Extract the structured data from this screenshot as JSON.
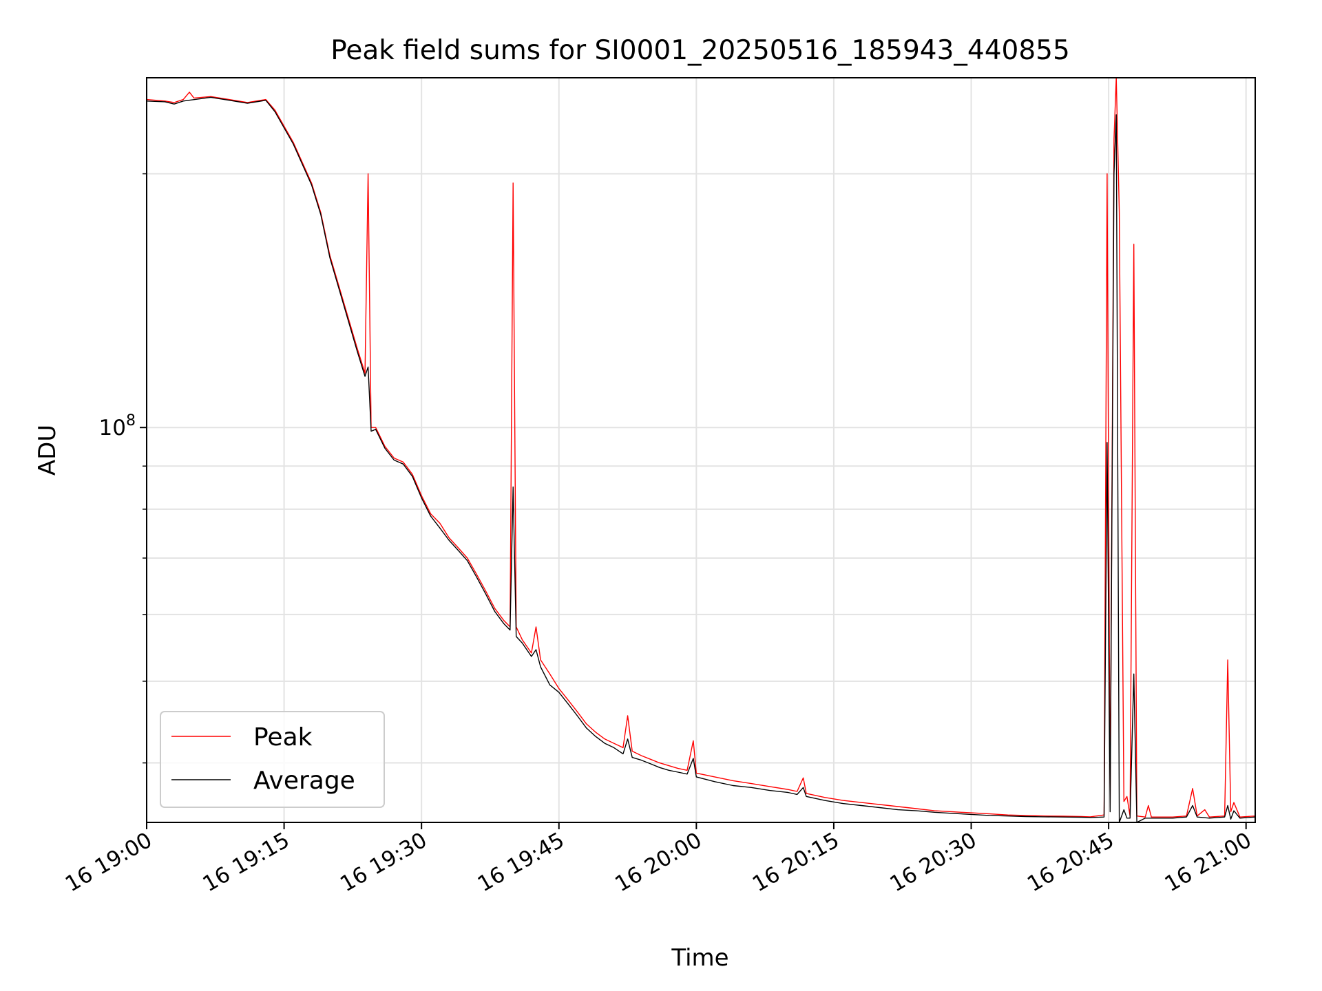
{
  "chart_data": {
    "type": "line",
    "title": "Peak field sums for SI0001_20250516_185943_440855",
    "xlabel": "Time",
    "ylabel": "ADU",
    "x_ticks": [
      {
        "t": "2025-05-16T19:00",
        "label": "16 19:00"
      },
      {
        "t": "2025-05-16T19:15",
        "label": "16 19:15"
      },
      {
        "t": "2025-05-16T19:30",
        "label": "16 19:30"
      },
      {
        "t": "2025-05-16T19:45",
        "label": "16 19:45"
      },
      {
        "t": "2025-05-16T20:00",
        "label": "16 20:00"
      },
      {
        "t": "2025-05-16T20:15",
        "label": "16 20:15"
      },
      {
        "t": "2025-05-16T20:30",
        "label": "16 20:30"
      },
      {
        "t": "2025-05-16T20:45",
        "label": "16 20:45"
      },
      {
        "t": "2025-05-16T21:00",
        "label": "16 21:00"
      }
    ],
    "xlim": [
      "2025-05-16T19:00",
      "2025-05-16T21:01"
    ],
    "y_scale": "log",
    "ylim": [
      34000000,
      260000000
    ],
    "y_major_ticks": [
      {
        "value": 100000000,
        "base": "10",
        "exp": "8"
      }
    ],
    "y_minor_ticks": [
      40000000,
      50000000,
      60000000,
      70000000,
      80000000,
      90000000,
      200000000
    ],
    "grid": true,
    "legend_position": "lower-left",
    "series": [
      {
        "name": "Peak",
        "color": "#ff0000",
        "points": [
          [
            "2025-05-16T19:00",
            245000000
          ],
          [
            "2025-05-16T19:02",
            244000000
          ],
          [
            "2025-05-16T19:03",
            243000000
          ],
          [
            "2025-05-16T19:04",
            245000000
          ],
          [
            "2025-05-16T19:04:40",
            250000000
          ],
          [
            "2025-05-16T19:05:10",
            246000000
          ],
          [
            "2025-05-16T19:07",
            247000000
          ],
          [
            "2025-05-16T19:09",
            245000000
          ],
          [
            "2025-05-16T19:11",
            243000000
          ],
          [
            "2025-05-16T19:13",
            245000000
          ],
          [
            "2025-05-16T19:14",
            238000000
          ],
          [
            "2025-05-16T19:16",
            218000000
          ],
          [
            "2025-05-16T19:18",
            195000000
          ],
          [
            "2025-05-16T19:19",
            180000000
          ],
          [
            "2025-05-16T19:20",
            160000000
          ],
          [
            "2025-05-16T19:21",
            147000000
          ],
          [
            "2025-05-16T19:22",
            135000000
          ],
          [
            "2025-05-16T19:23",
            124000000
          ],
          [
            "2025-05-16T19:23:50",
            116000000
          ],
          [
            "2025-05-16T19:24:10",
            200000000
          ],
          [
            "2025-05-16T19:24:30",
            100000000
          ],
          [
            "2025-05-16T19:25",
            100000000
          ],
          [
            "2025-05-16T19:26",
            95000000
          ],
          [
            "2025-05-16T19:27",
            92000000
          ],
          [
            "2025-05-16T19:28",
            91000000
          ],
          [
            "2025-05-16T19:29",
            88000000
          ],
          [
            "2025-05-16T19:30",
            83000000
          ],
          [
            "2025-05-16T19:31",
            79000000
          ],
          [
            "2025-05-16T19:32",
            77000000
          ],
          [
            "2025-05-16T19:33",
            74000000
          ],
          [
            "2025-05-16T19:34",
            72000000
          ],
          [
            "2025-05-16T19:35",
            70000000
          ],
          [
            "2025-05-16T19:36",
            67000000
          ],
          [
            "2025-05-16T19:37",
            64000000
          ],
          [
            "2025-05-16T19:38",
            61000000
          ],
          [
            "2025-05-16T19:39",
            59000000
          ],
          [
            "2025-05-16T19:39:40",
            58000000
          ],
          [
            "2025-05-16T19:40:00",
            195000000
          ],
          [
            "2025-05-16T19:40:20",
            58000000
          ],
          [
            "2025-05-16T19:41",
            56000000
          ],
          [
            "2025-05-16T19:42",
            54000000
          ],
          [
            "2025-05-16T19:42:30",
            58000000
          ],
          [
            "2025-05-16T19:43",
            53000000
          ],
          [
            "2025-05-16T19:44",
            51000000
          ],
          [
            "2025-05-16T19:45",
            49000000
          ],
          [
            "2025-05-16T19:46",
            47500000
          ],
          [
            "2025-05-16T19:47",
            46000000
          ],
          [
            "2025-05-16T19:48",
            44500000
          ],
          [
            "2025-05-16T19:49",
            43500000
          ],
          [
            "2025-05-16T19:50",
            42700000
          ],
          [
            "2025-05-16T19:51",
            42200000
          ],
          [
            "2025-05-16T19:52",
            41700000
          ],
          [
            "2025-05-16T19:52:30",
            45500000
          ],
          [
            "2025-05-16T19:53",
            41300000
          ],
          [
            "2025-05-16T19:54",
            40800000
          ],
          [
            "2025-05-16T19:55",
            40400000
          ],
          [
            "2025-05-16T19:56",
            40000000
          ],
          [
            "2025-05-16T19:57",
            39700000
          ],
          [
            "2025-05-16T19:58",
            39400000
          ],
          [
            "2025-05-16T19:59",
            39200000
          ],
          [
            "2025-05-16T19:59:40",
            42500000
          ],
          [
            "2025-05-16T20:00",
            38900000
          ],
          [
            "2025-05-16T20:02",
            38500000
          ],
          [
            "2025-05-16T20:04",
            38100000
          ],
          [
            "2025-05-16T20:06",
            37800000
          ],
          [
            "2025-05-16T20:08",
            37500000
          ],
          [
            "2025-05-16T20:10",
            37200000
          ],
          [
            "2025-05-16T20:11",
            37000000
          ],
          [
            "2025-05-16T20:11:40",
            38400000
          ],
          [
            "2025-05-16T20:12",
            36800000
          ],
          [
            "2025-05-16T20:14",
            36400000
          ],
          [
            "2025-05-16T20:16",
            36100000
          ],
          [
            "2025-05-16T20:18",
            35900000
          ],
          [
            "2025-05-16T20:20",
            35700000
          ],
          [
            "2025-05-16T20:22",
            35500000
          ],
          [
            "2025-05-16T20:24",
            35300000
          ],
          [
            "2025-05-16T20:26",
            35100000
          ],
          [
            "2025-05-16T20:28",
            35000000
          ],
          [
            "2025-05-16T20:30",
            34900000
          ],
          [
            "2025-05-16T20:32",
            34800000
          ],
          [
            "2025-05-16T20:34",
            34700000
          ],
          [
            "2025-05-16T20:36",
            34650000
          ],
          [
            "2025-05-16T20:38",
            34600000
          ],
          [
            "2025-05-16T20:40",
            34580000
          ],
          [
            "2025-05-16T20:42",
            34550000
          ],
          [
            "2025-05-16T20:43",
            34520000
          ],
          [
            "2025-05-16T20:44:30",
            34700000
          ],
          [
            "2025-05-16T20:44:50",
            200000000
          ],
          [
            "2025-05-16T20:45:10",
            35500000
          ],
          [
            "2025-05-16T20:45:35",
            220000000
          ],
          [
            "2025-05-16T20:45:50",
            260000000
          ],
          [
            "2025-05-16T20:46:10",
            180000000
          ],
          [
            "2025-05-16T20:46:40",
            36000000
          ],
          [
            "2025-05-16T20:47:00",
            36500000
          ],
          [
            "2025-05-16T20:47:20",
            34600000
          ],
          [
            "2025-05-16T20:47:45",
            165000000
          ],
          [
            "2025-05-16T20:48:05",
            34600000
          ],
          [
            "2025-05-16T20:49",
            34500000
          ],
          [
            "2025-05-16T20:49:20",
            35600000
          ],
          [
            "2025-05-16T20:49:40",
            34500000
          ],
          [
            "2025-05-16T20:52",
            34500000
          ],
          [
            "2025-05-16T20:53:30",
            34600000
          ],
          [
            "2025-05-16T20:54:10",
            37300000
          ],
          [
            "2025-05-16T20:54:40",
            34600000
          ],
          [
            "2025-05-16T20:55:30",
            35200000
          ],
          [
            "2025-05-16T20:56",
            34500000
          ],
          [
            "2025-05-16T20:57:40",
            34600000
          ],
          [
            "2025-05-16T20:58:00",
            53000000
          ],
          [
            "2025-05-16T20:58:20",
            35000000
          ],
          [
            "2025-05-16T20:58:40",
            35900000
          ],
          [
            "2025-05-16T20:59:20",
            34500000
          ],
          [
            "2025-05-16T21:01",
            34600000
          ]
        ]
      },
      {
        "name": "Average",
        "color": "#000000",
        "points": [
          [
            "2025-05-16T19:00",
            244000000
          ],
          [
            "2025-05-16T19:02",
            243500000
          ],
          [
            "2025-05-16T19:03",
            242000000
          ],
          [
            "2025-05-16T19:04",
            244000000
          ],
          [
            "2025-05-16T19:07",
            246500000
          ],
          [
            "2025-05-16T19:09",
            244500000
          ],
          [
            "2025-05-16T19:11",
            242500000
          ],
          [
            "2025-05-16T19:13",
            244500000
          ],
          [
            "2025-05-16T19:14",
            237000000
          ],
          [
            "2025-05-16T19:16",
            217000000
          ],
          [
            "2025-05-16T19:18",
            194000000
          ],
          [
            "2025-05-16T19:19",
            179000000
          ],
          [
            "2025-05-16T19:20",
            159000000
          ],
          [
            "2025-05-16T19:21",
            146000000
          ],
          [
            "2025-05-16T19:22",
            134000000
          ],
          [
            "2025-05-16T19:23",
            123000000
          ],
          [
            "2025-05-16T19:23:50",
            115000000
          ],
          [
            "2025-05-16T19:24:10",
            118000000
          ],
          [
            "2025-05-16T19:24:30",
            99000000
          ],
          [
            "2025-05-16T19:25",
            99500000
          ],
          [
            "2025-05-16T19:26",
            94500000
          ],
          [
            "2025-05-16T19:27",
            91500000
          ],
          [
            "2025-05-16T19:28",
            90500000
          ],
          [
            "2025-05-16T19:29",
            87500000
          ],
          [
            "2025-05-16T19:30",
            82500000
          ],
          [
            "2025-05-16T19:31",
            78500000
          ],
          [
            "2025-05-16T19:32",
            76000000
          ],
          [
            "2025-05-16T19:33",
            73500000
          ],
          [
            "2025-05-16T19:34",
            71500000
          ],
          [
            "2025-05-16T19:35",
            69500000
          ],
          [
            "2025-05-16T19:36",
            66500000
          ],
          [
            "2025-05-16T19:37",
            63500000
          ],
          [
            "2025-05-16T19:38",
            60500000
          ],
          [
            "2025-05-16T19:39",
            58500000
          ],
          [
            "2025-05-16T19:39:40",
            57500000
          ],
          [
            "2025-05-16T19:40:00",
            85000000
          ],
          [
            "2025-05-16T19:40:20",
            56500000
          ],
          [
            "2025-05-16T19:41",
            55500000
          ],
          [
            "2025-05-16T19:42",
            53500000
          ],
          [
            "2025-05-16T19:42:30",
            54500000
          ],
          [
            "2025-05-16T19:43",
            52000000
          ],
          [
            "2025-05-16T19:44",
            49500000
          ],
          [
            "2025-05-16T19:45",
            48500000
          ],
          [
            "2025-05-16T19:46",
            47000000
          ],
          [
            "2025-05-16T19:47",
            45500000
          ],
          [
            "2025-05-16T19:48",
            44000000
          ],
          [
            "2025-05-16T19:49",
            43000000
          ],
          [
            "2025-05-16T19:50",
            42200000
          ],
          [
            "2025-05-16T19:51",
            41700000
          ],
          [
            "2025-05-16T19:52",
            41000000
          ],
          [
            "2025-05-16T19:52:30",
            42700000
          ],
          [
            "2025-05-16T19:53",
            40600000
          ],
          [
            "2025-05-16T19:54",
            40300000
          ],
          [
            "2025-05-16T19:55",
            39900000
          ],
          [
            "2025-05-16T19:56",
            39500000
          ],
          [
            "2025-05-16T19:57",
            39200000
          ],
          [
            "2025-05-16T19:58",
            39000000
          ],
          [
            "2025-05-16T19:59",
            38800000
          ],
          [
            "2025-05-16T19:59:40",
            40500000
          ],
          [
            "2025-05-16T20:00",
            38500000
          ],
          [
            "2025-05-16T20:02",
            38000000
          ],
          [
            "2025-05-16T20:04",
            37600000
          ],
          [
            "2025-05-16T20:06",
            37400000
          ],
          [
            "2025-05-16T20:08",
            37100000
          ],
          [
            "2025-05-16T20:10",
            36900000
          ],
          [
            "2025-05-16T20:11",
            36700000
          ],
          [
            "2025-05-16T20:11:40",
            37400000
          ],
          [
            "2025-05-16T20:12",
            36500000
          ],
          [
            "2025-05-16T20:14",
            36100000
          ],
          [
            "2025-05-16T20:16",
            35800000
          ],
          [
            "2025-05-16T20:18",
            35600000
          ],
          [
            "2025-05-16T20:20",
            35400000
          ],
          [
            "2025-05-16T20:22",
            35200000
          ],
          [
            "2025-05-16T20:24",
            35100000
          ],
          [
            "2025-05-16T20:26",
            34950000
          ],
          [
            "2025-05-16T20:28",
            34850000
          ],
          [
            "2025-05-16T20:30",
            34750000
          ],
          [
            "2025-05-16T20:32",
            34650000
          ],
          [
            "2025-05-16T20:34",
            34600000
          ],
          [
            "2025-05-16T20:36",
            34550000
          ],
          [
            "2025-05-16T20:38",
            34520000
          ],
          [
            "2025-05-16T20:40",
            34500000
          ],
          [
            "2025-05-16T20:42",
            34480000
          ],
          [
            "2025-05-16T20:43",
            34460000
          ],
          [
            "2025-05-16T20:44:30",
            34500000
          ],
          [
            "2025-05-16T20:44:50",
            96000000
          ],
          [
            "2025-05-16T20:45:10",
            35000000
          ],
          [
            "2025-05-16T20:45:35",
            200000000
          ],
          [
            "2025-05-16T20:45:50",
            235000000
          ],
          [
            "2025-05-16T20:46:10",
            34000000
          ],
          [
            "2025-05-16T20:46:40",
            35200000
          ],
          [
            "2025-05-16T20:47:00",
            34400000
          ],
          [
            "2025-05-16T20:47:20",
            34400000
          ],
          [
            "2025-05-16T20:47:45",
            51000000
          ],
          [
            "2025-05-16T20:48:05",
            34000000
          ],
          [
            "2025-05-16T20:49",
            34400000
          ],
          [
            "2025-05-16T20:52",
            34400000
          ],
          [
            "2025-05-16T20:53:30",
            34500000
          ],
          [
            "2025-05-16T20:54:10",
            35600000
          ],
          [
            "2025-05-16T20:54:40",
            34500000
          ],
          [
            "2025-05-16T20:56",
            34400000
          ],
          [
            "2025-05-16T20:57:40",
            34500000
          ],
          [
            "2025-05-16T20:58:00",
            35600000
          ],
          [
            "2025-05-16T20:58:20",
            34300000
          ],
          [
            "2025-05-16T20:58:40",
            35100000
          ],
          [
            "2025-05-16T20:59:20",
            34400000
          ],
          [
            "2025-05-16T21:01",
            34500000
          ]
        ]
      }
    ]
  }
}
